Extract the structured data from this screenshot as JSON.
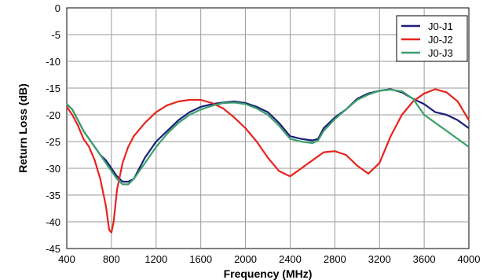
{
  "chart_data": {
    "type": "line",
    "title": "",
    "xlabel": "Frequency (MHz)",
    "ylabel": "Return Loss (dB)",
    "xlim": [
      400,
      4000
    ],
    "ylim": [
      -45,
      0
    ],
    "x_ticks": [
      "400",
      "800",
      "1200",
      "1600",
      "2000",
      "2400",
      "2800",
      "3200",
      "3600",
      "4000"
    ],
    "y_ticks": [
      "0",
      "-5",
      "-10",
      "-15",
      "-20",
      "-25",
      "-30",
      "-35",
      "-40",
      "-45"
    ],
    "grid": true,
    "legend": "top-right",
    "series": [
      {
        "name": "J0-J1",
        "color": "#1a1f7a",
        "points": [
          [
            400,
            -18
          ],
          [
            450,
            -19
          ],
          [
            500,
            -21
          ],
          [
            550,
            -23
          ],
          [
            600,
            -24.5
          ],
          [
            650,
            -26
          ],
          [
            700,
            -27.5
          ],
          [
            750,
            -28.5
          ],
          [
            800,
            -30
          ],
          [
            850,
            -31.5
          ],
          [
            900,
            -32.5
          ],
          [
            950,
            -32.5
          ],
          [
            1000,
            -32
          ],
          [
            1050,
            -30
          ],
          [
            1100,
            -28
          ],
          [
            1200,
            -25
          ],
          [
            1300,
            -23
          ],
          [
            1400,
            -21
          ],
          [
            1500,
            -19.5
          ],
          [
            1600,
            -18.5
          ],
          [
            1700,
            -18
          ],
          [
            1800,
            -17.7
          ],
          [
            1900,
            -17.5
          ],
          [
            2000,
            -17.8
          ],
          [
            2100,
            -18.5
          ],
          [
            2200,
            -19.5
          ],
          [
            2300,
            -21.5
          ],
          [
            2400,
            -24
          ],
          [
            2500,
            -24.5
          ],
          [
            2600,
            -24.8
          ],
          [
            2650,
            -24.5
          ],
          [
            2700,
            -22.5
          ],
          [
            2800,
            -20.5
          ],
          [
            2900,
            -19
          ],
          [
            3000,
            -17
          ],
          [
            3100,
            -16
          ],
          [
            3200,
            -15.5
          ],
          [
            3300,
            -15.2
          ],
          [
            3400,
            -15.8
          ],
          [
            3500,
            -17
          ],
          [
            3600,
            -18
          ],
          [
            3700,
            -19.5
          ],
          [
            3800,
            -20
          ],
          [
            3900,
            -21
          ],
          [
            4000,
            -22.5
          ]
        ]
      },
      {
        "name": "J0-J2",
        "color": "#e8231e",
        "points": [
          [
            400,
            -18.5
          ],
          [
            450,
            -20
          ],
          [
            500,
            -22
          ],
          [
            550,
            -24.5
          ],
          [
            600,
            -26
          ],
          [
            650,
            -28.5
          ],
          [
            700,
            -32
          ],
          [
            750,
            -37
          ],
          [
            780,
            -41.5
          ],
          [
            800,
            -42
          ],
          [
            820,
            -40
          ],
          [
            850,
            -34
          ],
          [
            900,
            -29
          ],
          [
            950,
            -26
          ],
          [
            1000,
            -24
          ],
          [
            1100,
            -21.5
          ],
          [
            1200,
            -19.5
          ],
          [
            1300,
            -18.2
          ],
          [
            1400,
            -17.5
          ],
          [
            1500,
            -17.2
          ],
          [
            1600,
            -17.2
          ],
          [
            1700,
            -17.8
          ],
          [
            1800,
            -18.8
          ],
          [
            1900,
            -20.5
          ],
          [
            2000,
            -22.5
          ],
          [
            2100,
            -25
          ],
          [
            2200,
            -28
          ],
          [
            2300,
            -30.5
          ],
          [
            2400,
            -31.5
          ],
          [
            2500,
            -30
          ],
          [
            2600,
            -28.5
          ],
          [
            2700,
            -27
          ],
          [
            2800,
            -26.8
          ],
          [
            2900,
            -27.5
          ],
          [
            3000,
            -29.5
          ],
          [
            3100,
            -31
          ],
          [
            3200,
            -29
          ],
          [
            3300,
            -24
          ],
          [
            3400,
            -20
          ],
          [
            3500,
            -17.5
          ],
          [
            3600,
            -16
          ],
          [
            3700,
            -15.2
          ],
          [
            3800,
            -15.8
          ],
          [
            3900,
            -17.5
          ],
          [
            4000,
            -21
          ]
        ]
      },
      {
        "name": "J0-J3",
        "color": "#3aa06a",
        "points": [
          [
            400,
            -18
          ],
          [
            450,
            -19
          ],
          [
            500,
            -21
          ],
          [
            550,
            -23
          ],
          [
            600,
            -24.5
          ],
          [
            650,
            -26
          ],
          [
            700,
            -27.5
          ],
          [
            750,
            -29
          ],
          [
            800,
            -30.5
          ],
          [
            850,
            -32
          ],
          [
            900,
            -33
          ],
          [
            950,
            -33
          ],
          [
            1000,
            -32
          ],
          [
            1050,
            -30.5
          ],
          [
            1100,
            -29
          ],
          [
            1200,
            -26
          ],
          [
            1300,
            -23.5
          ],
          [
            1400,
            -21.5
          ],
          [
            1500,
            -20
          ],
          [
            1600,
            -19
          ],
          [
            1700,
            -18.3
          ],
          [
            1800,
            -17.8
          ],
          [
            1900,
            -17.7
          ],
          [
            2000,
            -18
          ],
          [
            2100,
            -18.8
          ],
          [
            2200,
            -20
          ],
          [
            2300,
            -22
          ],
          [
            2400,
            -24.5
          ],
          [
            2500,
            -25
          ],
          [
            2600,
            -25.3
          ],
          [
            2650,
            -24.8
          ],
          [
            2700,
            -23
          ],
          [
            2800,
            -20.8
          ],
          [
            2900,
            -19
          ],
          [
            3000,
            -17.2
          ],
          [
            3100,
            -16.2
          ],
          [
            3200,
            -15.5
          ],
          [
            3300,
            -15.3
          ],
          [
            3400,
            -15.6
          ],
          [
            3500,
            -17
          ],
          [
            3600,
            -20
          ],
          [
            3700,
            -21.5
          ],
          [
            3800,
            -23
          ],
          [
            3900,
            -24.5
          ],
          [
            4000,
            -26
          ]
        ]
      }
    ]
  }
}
